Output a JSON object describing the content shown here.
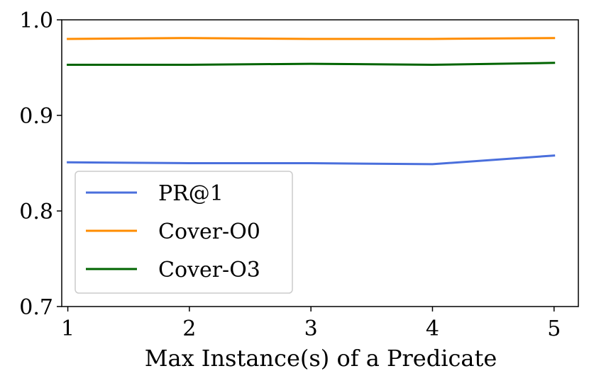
{
  "chart_data": {
    "type": "line",
    "xlabel": "Max Instance(s) of a Predicate",
    "ylabel": "",
    "x": [
      1,
      2,
      3,
      4,
      5
    ],
    "xlim": [
      0.95,
      5.2
    ],
    "ylim": [
      0.7,
      1.0
    ],
    "xticks": [
      1,
      2,
      3,
      4,
      5
    ],
    "yticks": [
      0.7,
      0.8,
      0.9,
      1.0
    ],
    "ytick_labels": [
      "0.7",
      "0.8",
      "0.9",
      "1.0"
    ],
    "grid": false,
    "legend_position": "lower-left",
    "series": [
      {
        "name": "PR@1",
        "color": "#4a6fdc",
        "values": [
          0.851,
          0.85,
          0.85,
          0.849,
          0.858
        ]
      },
      {
        "name": "Cover-O0",
        "color": "#ff8c00",
        "values": [
          0.98,
          0.981,
          0.98,
          0.98,
          0.981
        ]
      },
      {
        "name": "Cover-O3",
        "color": "#006400",
        "values": [
          0.953,
          0.953,
          0.954,
          0.953,
          0.955
        ]
      }
    ]
  }
}
